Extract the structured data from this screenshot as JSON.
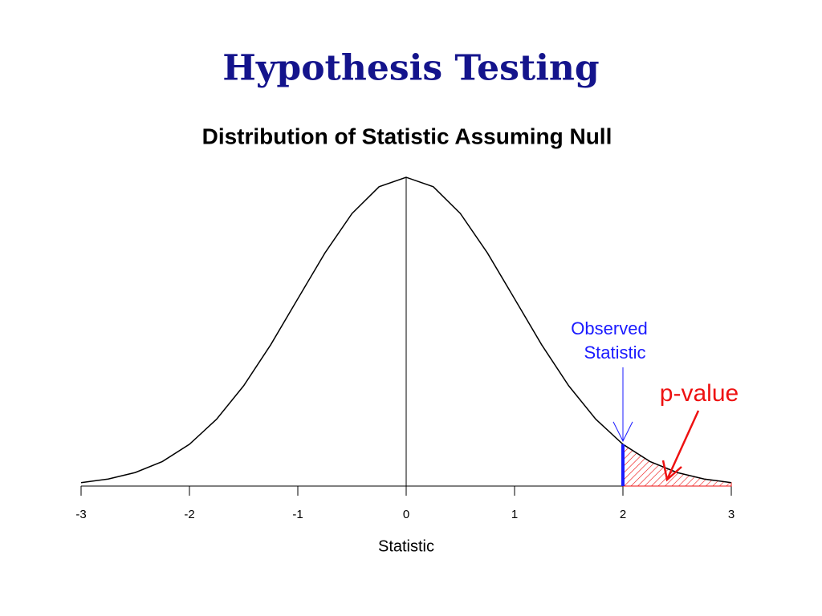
{
  "slide_title": "Hypothesis Testing",
  "chart_data": {
    "type": "line",
    "title": "Distribution of Statistic Assuming Null",
    "xlabel": "Statistic",
    "x": [
      -3,
      -2.75,
      -2.5,
      -2.25,
      -2,
      -1.75,
      -1.5,
      -1.25,
      -1,
      -0.75,
      -0.5,
      -0.25,
      0,
      0.25,
      0.5,
      0.75,
      1,
      1.25,
      1.5,
      1.75,
      2,
      2.25,
      2.5,
      2.75,
      3
    ],
    "series": [
      {
        "color": "#000000",
        "values": [
          0.0044,
          0.0091,
          0.0175,
          0.0317,
          0.054,
          0.0863,
          0.1295,
          0.1826,
          0.242,
          0.3011,
          0.3521,
          0.3867,
          0.3989,
          0.3867,
          0.3521,
          0.3011,
          0.242,
          0.1826,
          0.1295,
          0.0863,
          0.054,
          0.0317,
          0.0175,
          0.0091,
          0.0044
        ]
      }
    ],
    "xlim": [
      -3,
      3
    ],
    "xticks": [
      -3,
      -2,
      -1,
      0,
      1,
      2,
      3
    ],
    "ylim": [
      0,
      0.4
    ],
    "observed": {
      "value": 2,
      "label": [
        "Observed",
        "Statistic"
      ],
      "color": "#1a1aff"
    },
    "p_value": {
      "label": "p-value",
      "color": "#ee1111"
    }
  }
}
